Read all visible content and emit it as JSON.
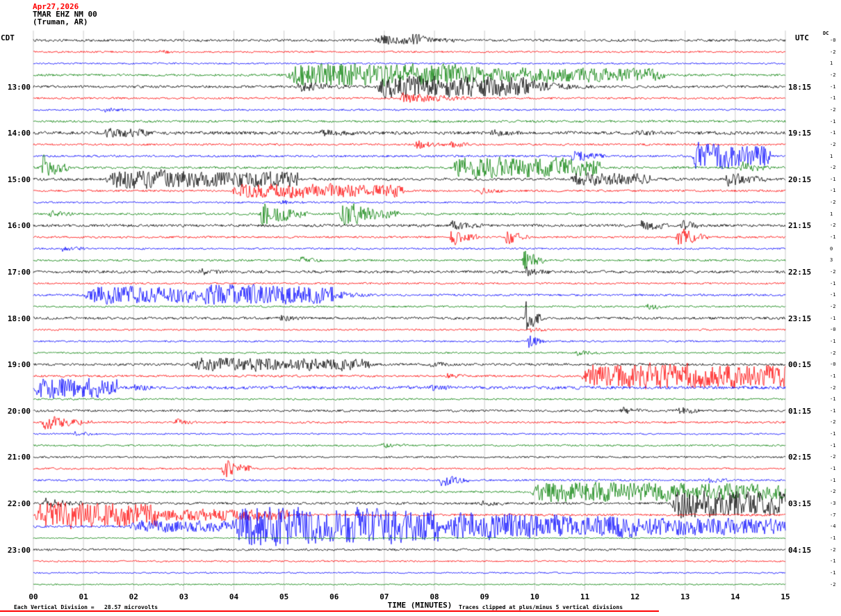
{
  "header": {
    "date": "Apr27,2026",
    "station": "TMAR EHZ NM 00",
    "location": "(Truman, AR)"
  },
  "axes": {
    "left_tz": "CDT",
    "right_tz": "UTC",
    "dc_label": "DC",
    "x_title": "TIME (MINUTES)",
    "x_ticks": [
      "00",
      "01",
      "02",
      "03",
      "04",
      "05",
      "06",
      "07",
      "08",
      "09",
      "10",
      "11",
      "12",
      "13",
      "14",
      "15"
    ]
  },
  "footer": {
    "scale": "Each Vertical Division =   28.57 microvolts",
    "clip_note": "Traces clipped at plus/minus 5 vertical divisions"
  },
  "chart_data": {
    "type": "line",
    "subtype": "helicorder-seismogram",
    "title": "TMAR EHZ NM 00 (Truman, AR) Apr27,2026",
    "xlabel": "TIME (MINUTES)",
    "x_range_minutes": [
      0,
      15
    ],
    "minutes_per_line": 15,
    "lines_per_hour": 4,
    "num_traces": 48,
    "grid": true,
    "trace_colors_cycle": [
      "black",
      "red",
      "blue",
      "green"
    ],
    "colors": {
      "black": "#000000",
      "red": "#ff0000",
      "blue": "#0000ff",
      "green": "#007d00",
      "grid": "#b4b4b4",
      "accent_red": "#ff0000"
    },
    "hour_rows": [
      {
        "row": 4,
        "cdt": "13:00",
        "utc": "18:15"
      },
      {
        "row": 8,
        "cdt": "14:00",
        "utc": "19:15"
      },
      {
        "row": 12,
        "cdt": "15:00",
        "utc": "20:15"
      },
      {
        "row": 16,
        "cdt": "16:00",
        "utc": "21:15"
      },
      {
        "row": 20,
        "cdt": "17:00",
        "utc": "22:15"
      },
      {
        "row": 24,
        "cdt": "18:00",
        "utc": "23:15"
      },
      {
        "row": 28,
        "cdt": "19:00",
        "utc": "00:15"
      },
      {
        "row": 32,
        "cdt": "20:00",
        "utc": "01:15"
      },
      {
        "row": 36,
        "cdt": "21:00",
        "utc": "02:15"
      },
      {
        "row": 40,
        "cdt": "22:00",
        "utc": "03:15"
      },
      {
        "row": 44,
        "cdt": "23:00",
        "utc": "04:15"
      }
    ],
    "dc_values": [
      "-0",
      "-2",
      "1",
      "-2",
      "-1",
      "-1",
      "-2",
      "-1",
      "-1",
      "-2",
      "1",
      "-2",
      "-1",
      "-1",
      "-2",
      "1",
      "-2",
      "-1",
      "0",
      "3",
      "-2",
      "-1",
      "-1",
      "-2",
      "-1",
      "-0",
      "-1",
      "-2",
      "-0",
      "-1",
      "-2",
      "-1",
      "-1",
      "-2",
      "-1",
      "-1",
      "-2",
      "-1",
      "-1",
      "-2",
      "-3",
      "-7",
      "-4",
      "-1",
      "-2",
      "-1",
      "-1",
      "-2"
    ],
    "traces": [
      {
        "n": 1.6,
        "ev": [
          [
            6.8,
            8.4,
            7,
            0
          ],
          [
            7.55,
            7.95,
            12,
            0
          ]
        ]
      },
      {
        "n": 1.2,
        "ev": [
          [
            2.5,
            2.8,
            3,
            0
          ]
        ]
      },
      {
        "n": 1.1,
        "ev": []
      },
      {
        "n": 1.5,
        "ev": [
          [
            5.0,
            9.0,
            15,
            1
          ],
          [
            9.0,
            12.6,
            9,
            1
          ]
        ]
      },
      {
        "n": 1.7,
        "ev": [
          [
            5.2,
            6.3,
            7,
            0
          ],
          [
            6.8,
            10.0,
            14,
            1
          ],
          [
            10.0,
            11.2,
            6,
            0
          ]
        ]
      },
      {
        "n": 1.3,
        "ev": [
          [
            7.3,
            8.7,
            8,
            0
          ]
        ]
      },
      {
        "n": 1.2,
        "ev": [
          [
            1.4,
            1.9,
            3,
            0
          ]
        ]
      },
      {
        "n": 1.5,
        "ev": []
      },
      {
        "n": 2.2,
        "ev": [
          [
            1.4,
            2.3,
            4,
            1
          ],
          [
            5.7,
            6.4,
            4,
            0
          ],
          [
            9.1,
            9.7,
            4,
            0
          ],
          [
            12.0,
            12.5,
            3,
            0
          ]
        ]
      },
      {
        "n": 1.3,
        "ev": [
          [
            7.6,
            8.2,
            6,
            0
          ],
          [
            8.3,
            8.7,
            5,
            0
          ]
        ]
      },
      {
        "n": 1.4,
        "ev": [
          [
            10.7,
            11.4,
            9,
            0
          ],
          [
            13.1,
            14.7,
            17,
            1
          ]
        ]
      },
      {
        "n": 1.5,
        "ev": [
          [
            0.15,
            0.7,
            19,
            0
          ],
          [
            8.3,
            11.3,
            13,
            1
          ],
          [
            14.1,
            14.7,
            9,
            0
          ]
        ]
      },
      {
        "n": 1.8,
        "ev": [
          [
            1.4,
            5.3,
            11,
            1
          ],
          [
            10.7,
            12.3,
            7,
            1
          ],
          [
            13.8,
            14.6,
            11,
            0
          ]
        ]
      },
      {
        "n": 1.4,
        "ev": [
          [
            3.9,
            7.4,
            9,
            1
          ],
          [
            8.9,
            9.4,
            4,
            0
          ]
        ]
      },
      {
        "n": 1.2,
        "ev": [
          [
            4.9,
            5.4,
            3,
            0
          ]
        ]
      },
      {
        "n": 1.4,
        "ev": [
          [
            4.5,
            5.5,
            19,
            0
          ],
          [
            6.1,
            7.3,
            19,
            0
          ],
          [
            0.3,
            0.8,
            5,
            0
          ]
        ]
      },
      {
        "n": 1.8,
        "ev": [
          [
            8.3,
            9.0,
            6,
            0
          ],
          [
            12.1,
            12.7,
            9,
            0
          ],
          [
            12.9,
            13.4,
            7,
            0
          ]
        ]
      },
      {
        "n": 1.3,
        "ev": [
          [
            8.3,
            8.9,
            13,
            0
          ],
          [
            9.4,
            9.9,
            11,
            0
          ],
          [
            12.8,
            13.5,
            15,
            0
          ]
        ]
      },
      {
        "n": 1.2,
        "ev": [
          [
            0.5,
            1.1,
            4,
            0
          ]
        ]
      },
      {
        "n": 1.3,
        "ev": [
          [
            9.75,
            10.2,
            17,
            0
          ],
          [
            5.3,
            5.8,
            4,
            0
          ]
        ]
      },
      {
        "n": 1.8,
        "ev": [
          [
            3.3,
            3.8,
            4,
            0
          ],
          [
            9.8,
            10.3,
            6,
            0
          ]
        ]
      },
      {
        "n": 1.2,
        "ev": []
      },
      {
        "n": 1.4,
        "ev": [
          [
            1.0,
            3.3,
            11,
            1
          ],
          [
            3.3,
            6.0,
            13,
            1
          ],
          [
            6.0,
            6.8,
            5,
            0
          ]
        ]
      },
      {
        "n": 1.2,
        "ev": [
          [
            12.2,
            12.7,
            5,
            0
          ]
        ]
      },
      {
        "n": 1.7,
        "ev": [
          [
            9.8,
            10.2,
            22,
            0
          ],
          [
            4.9,
            5.4,
            4,
            0
          ]
        ]
      },
      {
        "n": 1.2,
        "ev": [
          [
            9.9,
            10.3,
            4,
            0
          ]
        ]
      },
      {
        "n": 1.2,
        "ev": [
          [
            9.85,
            10.25,
            11,
            0
          ]
        ]
      },
      {
        "n": 1.1,
        "ev": [
          [
            10.8,
            11.3,
            4,
            0
          ]
        ]
      },
      {
        "n": 1.6,
        "ev": [
          [
            3.1,
            6.7,
            8,
            1
          ],
          [
            7.9,
            8.4,
            3,
            0
          ]
        ]
      },
      {
        "n": 1.4,
        "ev": [
          [
            10.9,
            15.0,
            17,
            1
          ],
          [
            8.2,
            8.7,
            4,
            0
          ]
        ]
      },
      {
        "n": 2.0,
        "ev": [
          [
            0.0,
            1.7,
            13,
            1
          ],
          [
            2.0,
            2.4,
            5,
            0
          ],
          [
            7.9,
            8.4,
            4,
            0
          ]
        ]
      },
      {
        "n": 1.2,
        "ev": []
      },
      {
        "n": 1.5,
        "ev": [
          [
            11.7,
            12.2,
            5,
            0
          ],
          [
            12.8,
            13.3,
            8,
            0
          ]
        ]
      },
      {
        "n": 1.3,
        "ev": [
          [
            0.15,
            1.2,
            11,
            0
          ],
          [
            2.8,
            3.3,
            5,
            0
          ]
        ]
      },
      {
        "n": 1.1,
        "ev": [
          [
            0.8,
            1.3,
            3,
            0
          ]
        ]
      },
      {
        "n": 1.2,
        "ev": [
          [
            6.9,
            7.5,
            3,
            0
          ]
        ]
      },
      {
        "n": 1.3,
        "ev": []
      },
      {
        "n": 1.2,
        "ev": [
          [
            3.75,
            4.35,
            17,
            0
          ]
        ]
      },
      {
        "n": 1.3,
        "ev": [
          [
            8.1,
            8.7,
            9,
            0
          ],
          [
            13.4,
            13.9,
            4,
            0
          ]
        ]
      },
      {
        "n": 1.4,
        "ev": [
          [
            9.9,
            13.1,
            13,
            1
          ],
          [
            13.1,
            15.0,
            11,
            1
          ]
        ]
      },
      {
        "n": 1.6,
        "ev": [
          [
            12.7,
            15.0,
            19,
            1
          ],
          [
            0.2,
            1.0,
            7,
            0
          ],
          [
            8.9,
            9.4,
            4,
            0
          ]
        ]
      },
      {
        "n": 1.5,
        "ev": [
          [
            0.0,
            2.5,
            17,
            1
          ],
          [
            2.5,
            5.1,
            7,
            1
          ]
        ]
      },
      {
        "n": 1.5,
        "ev": [
          [
            3.9,
            8.1,
            27,
            1
          ],
          [
            8.1,
            12.1,
            17,
            1
          ],
          [
            12.1,
            15.0,
            11,
            1
          ],
          [
            1.9,
            3.9,
            7,
            1
          ]
        ]
      },
      {
        "n": 0.8,
        "ev": []
      },
      {
        "n": 1.4,
        "ev": []
      },
      {
        "n": 1.1,
        "ev": []
      },
      {
        "n": 1.0,
        "ev": []
      },
      {
        "n": 0.9,
        "ev": []
      }
    ]
  }
}
